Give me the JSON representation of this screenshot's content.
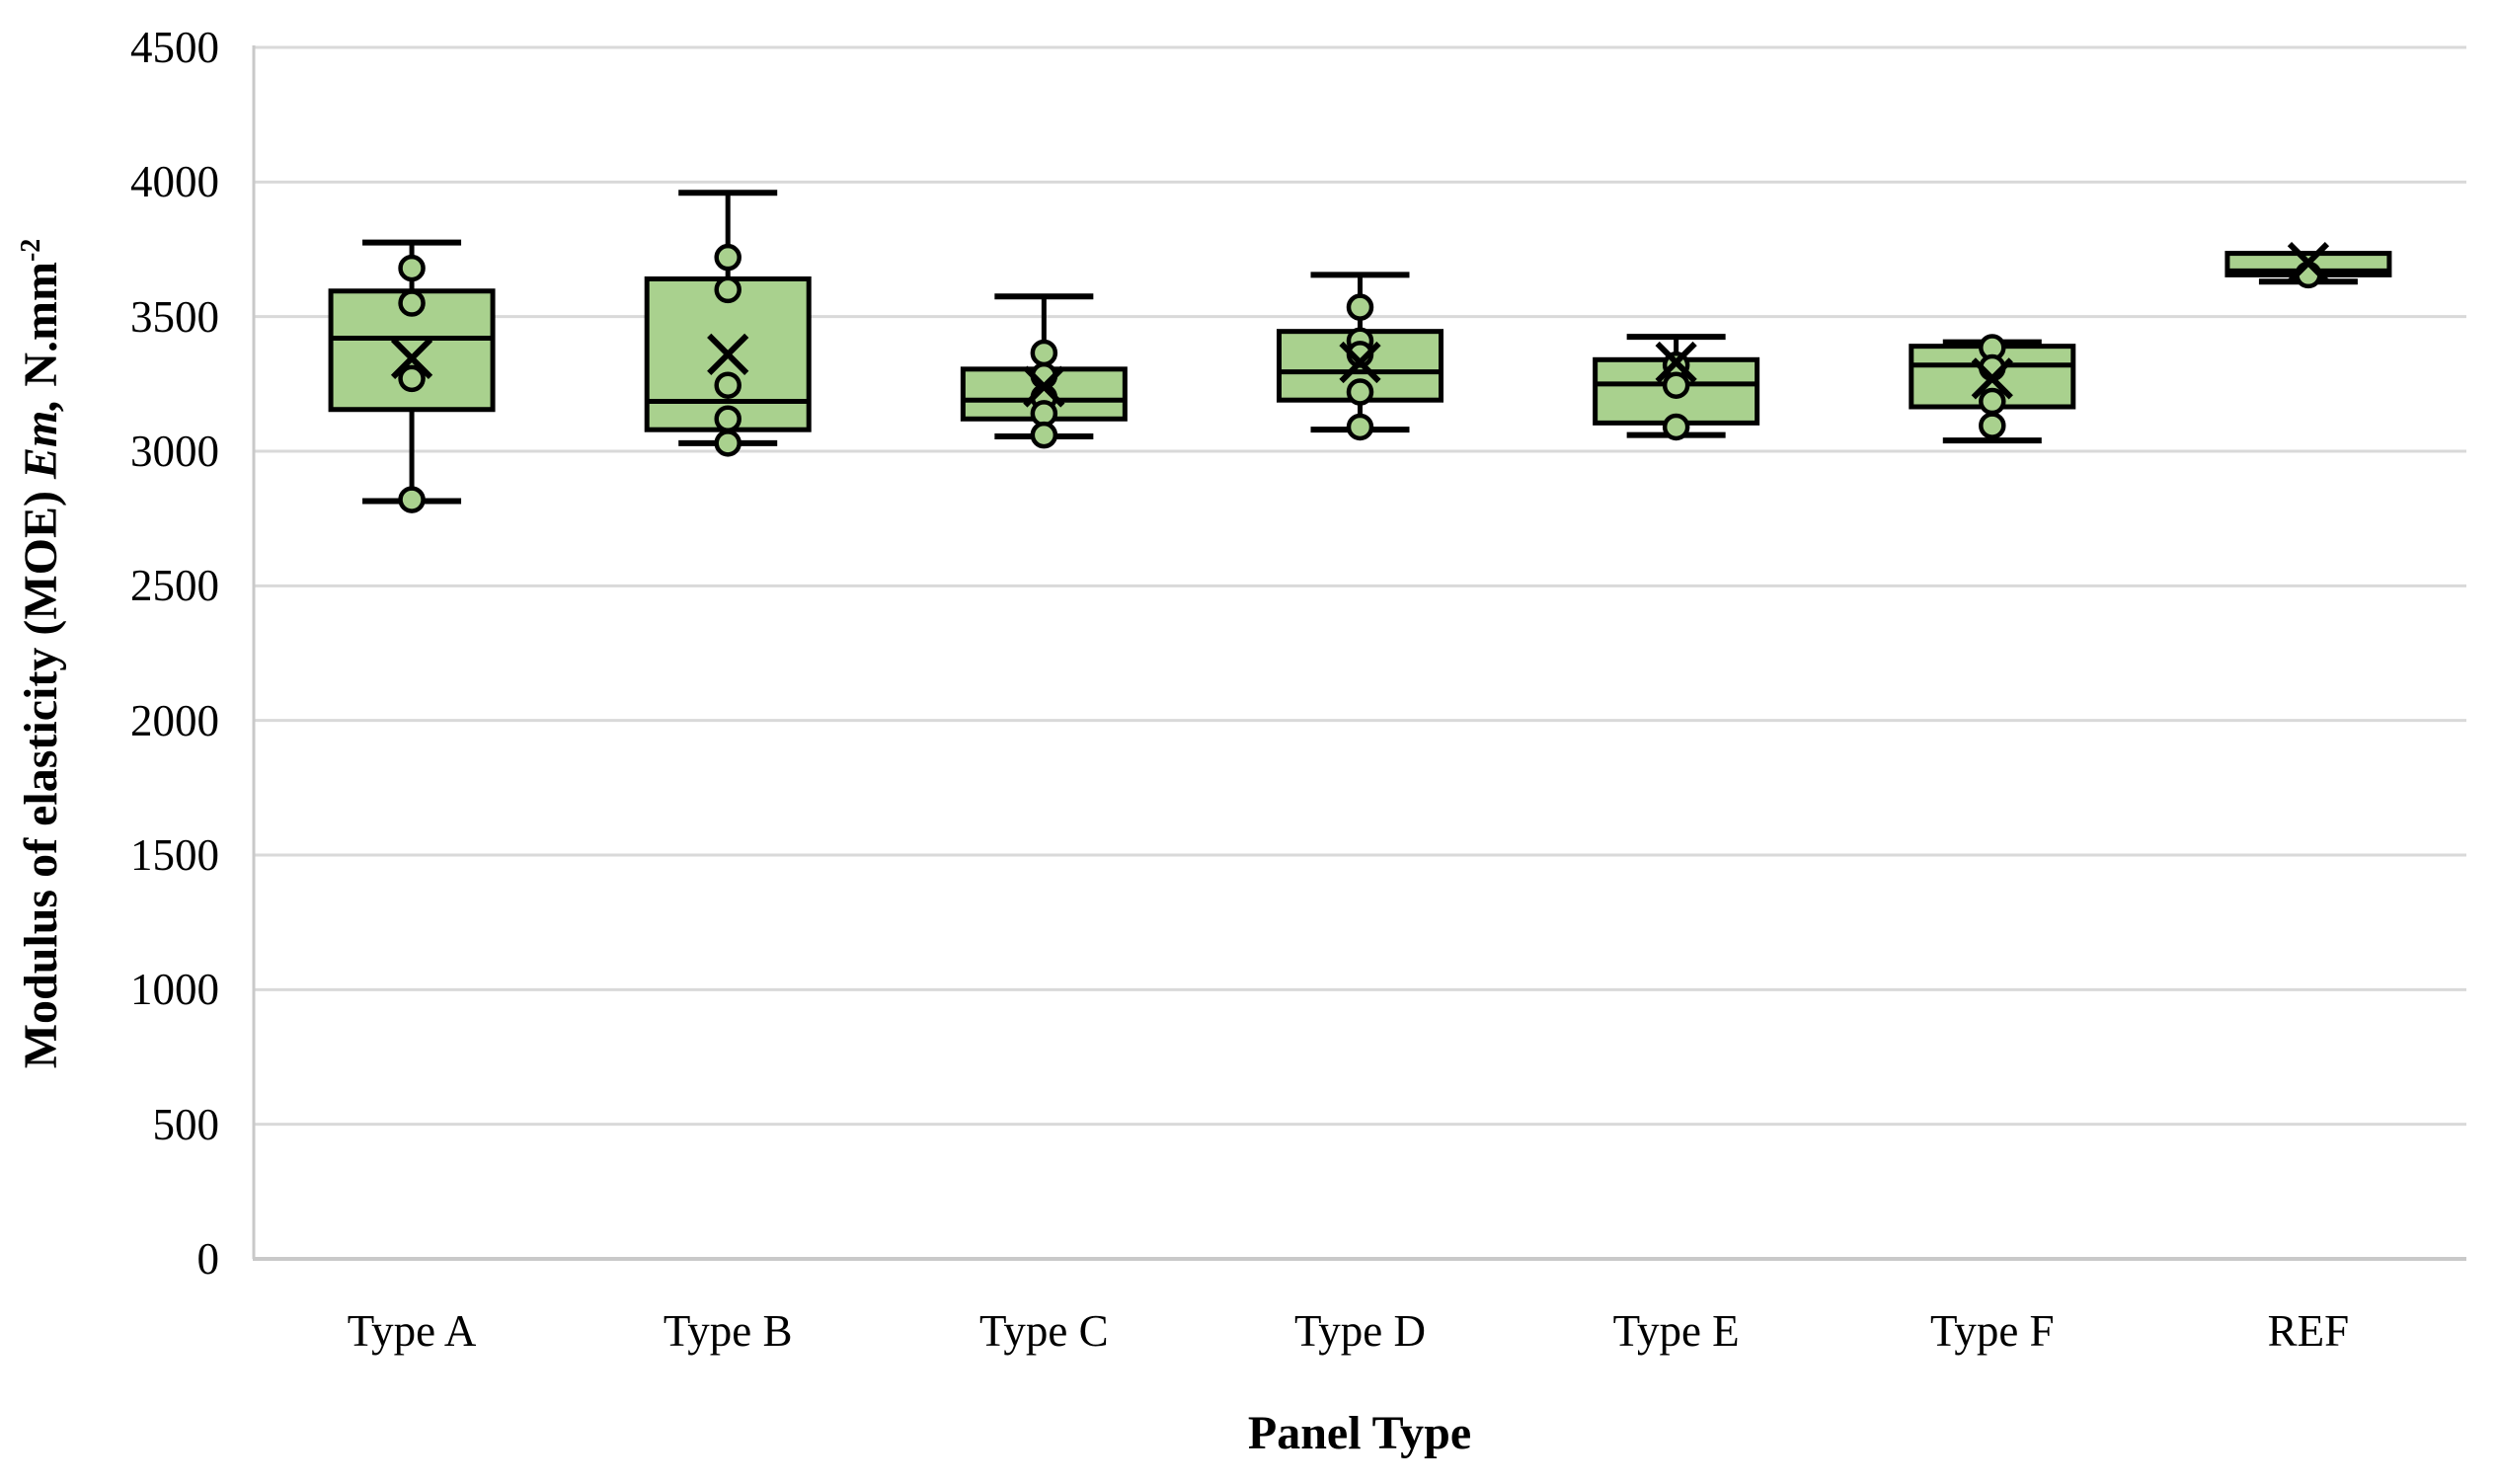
{
  "figure": {
    "background": "#ffffff"
  },
  "chart_data": {
    "type": "boxplot",
    "title": "",
    "xlabel": "Panel Type",
    "ylabel": "Modulus of elasticity (MOE) Em, N.mm⁻²",
    "ylabel_parts": {
      "prefix": "Modulus of elasticity (MOE) ",
      "italic": "Em,",
      "suffix": " N.mm",
      "superscript": "-2"
    },
    "categories": [
      "Type A",
      "Type B",
      "Type C",
      "Type D",
      "Type E",
      "Type F",
      "REF"
    ],
    "series": [
      {
        "label": "Type A",
        "whisker_low": 2815,
        "q1": 3155,
        "median": 3420,
        "q3": 3595,
        "whisker_high": 3775,
        "mean": 3345,
        "points": [
          3680,
          3550,
          3270,
          2820
        ]
      },
      {
        "label": "Type B",
        "whisker_low": 3030,
        "q1": 3080,
        "median": 3185,
        "q3": 3640,
        "whisker_high": 3960,
        "mean": 3360,
        "points": [
          3720,
          3600,
          3245,
          3120,
          3030
        ]
      },
      {
        "label": "Type C",
        "whisker_low": 3055,
        "q1": 3120,
        "median": 3190,
        "q3": 3305,
        "whisker_high": 3575,
        "mean": 3240,
        "points": [
          3365,
          3280,
          3200,
          3140,
          3060
        ]
      },
      {
        "label": "Type D",
        "whisker_low": 3080,
        "q1": 3190,
        "median": 3295,
        "q3": 3445,
        "whisker_high": 3655,
        "mean": 3330,
        "points": [
          3535,
          3410,
          3360,
          3220,
          3090
        ]
      },
      {
        "label": "Type E",
        "whisker_low": 3060,
        "q1": 3105,
        "median": 3250,
        "q3": 3340,
        "whisker_high": 3425,
        "mean": 3330,
        "points": [
          3320,
          3245,
          3090
        ]
      },
      {
        "label": "Type F",
        "whisker_low": 3040,
        "q1": 3165,
        "median": 3320,
        "q3": 3390,
        "whisker_high": 3405,
        "mean": 3270,
        "points": [
          3385,
          3310,
          3185,
          3095
        ]
      },
      {
        "label": "REF",
        "whisker_low": 3630,
        "q1": 3655,
        "median": 3670,
        "q3": 3735,
        "whisker_high": 3735,
        "mean": 3700,
        "points": [
          3655
        ]
      }
    ],
    "ylim": [
      0,
      4500
    ],
    "ytick_step": 500,
    "yticks": [
      0,
      500,
      1000,
      1500,
      2000,
      2500,
      3000,
      3500,
      4000,
      4500
    ],
    "grid": true,
    "legend": false,
    "colors": {
      "box_fill": "#a9d18e",
      "box_border": "#000000",
      "point_fill": "#a9d18e",
      "point_border": "#000000",
      "mean_marker": "#000000",
      "gridline": "#d9d9d9",
      "axis_line": "#c9c9c9",
      "text": "#000000"
    }
  }
}
